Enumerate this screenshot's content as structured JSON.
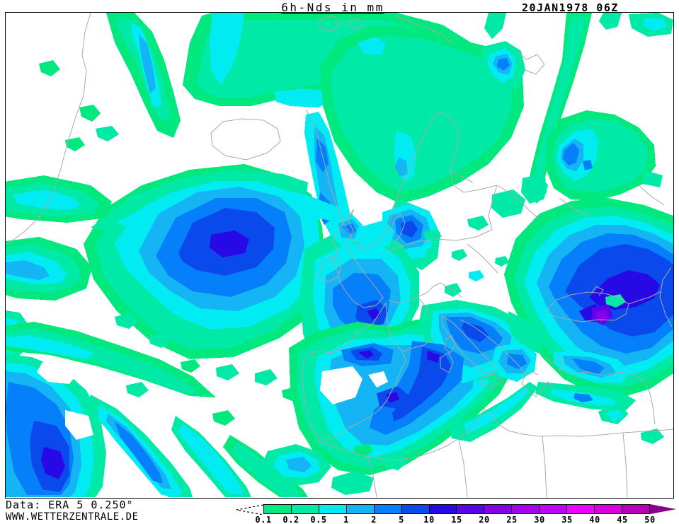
{
  "header": {
    "title": "6h-Nds in mm",
    "run_datetime": "20JAN1978 06Z"
  },
  "footer": {
    "data_source": "Data: ERA 5 0.250°",
    "website": "WWW.WETTERZENTRALE.DE"
  },
  "legend": {
    "tick_labels": [
      "0.1",
      "0.2",
      "0.5",
      "1",
      "2",
      "5",
      "10",
      "15",
      "20",
      "25",
      "30",
      "35",
      "40",
      "45",
      "50"
    ],
    "segment_colors": [
      "#00e87e",
      "#00e9a6",
      "#00ecf2",
      "#14b4f5",
      "#0580fa",
      "#0a49ec",
      "#2609e4",
      "#5b04e8",
      "#8403e8",
      "#a303f0",
      "#be04fc",
      "#ef04ff",
      "#dd00dd",
      "#b800b8"
    ],
    "overflow_arrow_color": "#8a008a"
  },
  "map": {
    "coastline_color": "#a9a9a9",
    "frame_color": "#000000",
    "background_color": "#ffffff"
  }
}
